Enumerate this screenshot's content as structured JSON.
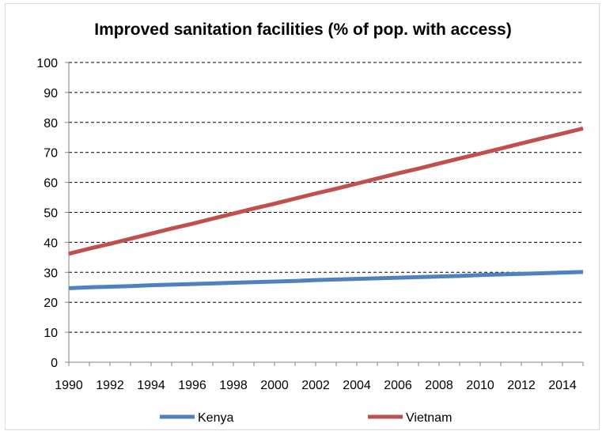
{
  "chart_data": {
    "type": "line",
    "title": "Improved sanitation facilities (% of pop. with access)",
    "xlabel": "",
    "ylabel": "",
    "xlim": [
      1990,
      2015
    ],
    "ylim": [
      0,
      100
    ],
    "grid": true,
    "legend_position": "bottom",
    "y_ticks": [
      "0",
      "10",
      "20",
      "30",
      "40",
      "50",
      "60",
      "70",
      "80",
      "90",
      "100"
    ],
    "x_ticks": [
      "1990",
      "1992",
      "1994",
      "1996",
      "1998",
      "2000",
      "2002",
      "2004",
      "2006",
      "2008",
      "2010",
      "2012",
      "2014"
    ],
    "x": [
      1990,
      1991,
      1992,
      1993,
      1994,
      1995,
      1996,
      1997,
      1998,
      1999,
      2000,
      2001,
      2002,
      2003,
      2004,
      2005,
      2006,
      2007,
      2008,
      2009,
      2010,
      2011,
      2012,
      2013,
      2014,
      2015
    ],
    "series": [
      {
        "name": "Kenya",
        "color": "#4f81bd",
        "values": [
          24.7,
          25.0,
          25.2,
          25.4,
          25.7,
          25.9,
          26.1,
          26.3,
          26.5,
          26.7,
          26.9,
          27.1,
          27.4,
          27.6,
          27.8,
          28.0,
          28.2,
          28.4,
          28.6,
          28.8,
          29.1,
          29.3,
          29.5,
          29.7,
          29.9,
          30.1
        ]
      },
      {
        "name": "Vietnam",
        "color": "#c0504d",
        "values": [
          36.2,
          37.9,
          39.5,
          41.2,
          42.9,
          44.6,
          46.2,
          47.9,
          49.6,
          51.3,
          52.9,
          54.6,
          56.3,
          57.9,
          59.6,
          61.3,
          63.0,
          64.6,
          66.3,
          68.0,
          69.6,
          71.3,
          73.0,
          74.7,
          76.3,
          78.0
        ]
      }
    ]
  }
}
